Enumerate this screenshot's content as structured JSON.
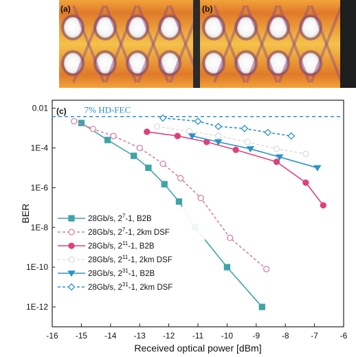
{
  "panels": [
    {
      "tag": "(a)"
    },
    {
      "tag": "(b)"
    }
  ],
  "chart_data": {
    "type": "line",
    "panel_tag": "(c)",
    "xlabel": "Received optical power [dBm]",
    "ylabel": "BER",
    "xlim": [
      -16,
      -6
    ],
    "ylim_log10": [
      -13,
      -1.6
    ],
    "log_y": true,
    "x_ticks": [
      -16,
      -15,
      -14,
      -13,
      -12,
      -11,
      -10,
      -9,
      -8,
      -7,
      -6
    ],
    "y_ticks": [
      {
        "label": "0.01",
        "value": 0.01
      },
      {
        "label": "1E-4",
        "value": 0.0001
      },
      {
        "label": "1E-6",
        "value": 1e-06
      },
      {
        "label": "1E-8",
        "value": 1e-08
      },
      {
        "label": "1E-10",
        "value": 1e-10
      },
      {
        "label": "1E-12",
        "value": 1e-12
      }
    ],
    "threshold": {
      "label": "7% HD-FEC",
      "value": 0.0038,
      "color": "#2a8fd0"
    },
    "series": [
      {
        "name": "28Gb/s, 2^7-1, B2B",
        "color": "#3fa3a8",
        "marker": "square",
        "filled": true,
        "dash": false,
        "x": [
          -15.0,
          -14.1,
          -13.2,
          -12.7,
          -12.15,
          -11.65,
          -11.1,
          -10.0,
          -8.8
        ],
        "y": [
          0.0018,
          0.00025,
          4e-05,
          1e-05,
          1.5e-06,
          2e-07,
          1e-08,
          1e-10,
          1e-12
        ]
      },
      {
        "name": "28Gb/s, 2^7-1, 2km DSF",
        "color": "#d97fa0",
        "marker": "circle",
        "filled": false,
        "dash": true,
        "x": [
          -15.25,
          -14.6,
          -13.9,
          -13.0,
          -12.2,
          -11.6,
          -10.9,
          -9.9,
          -8.65
        ],
        "y": [
          0.0022,
          0.0009,
          0.0004,
          0.0001,
          1.6e-05,
          3e-06,
          3e-07,
          3e-09,
          8e-11
        ]
      },
      {
        "name": "28Gb/s, 2^11-1, B2B",
        "color": "#e0407a",
        "marker": "circle",
        "filled": true,
        "dash": false,
        "x": [
          -12.75,
          -11.7,
          -10.7,
          -9.7,
          -8.3,
          -7.3,
          -6.7
        ],
        "y": [
          0.00065,
          0.0004,
          0.0002,
          8e-05,
          2e-05,
          1.8e-06,
          1.3e-07
        ]
      },
      {
        "name": "28Gb/s, 2^11-1, 2km DSF",
        "color": "#dddddd",
        "marker": "circle",
        "filled": false,
        "dash": true,
        "x": [
          -12.4,
          -11.3,
          -10.3,
          -9.3,
          -8.3,
          -7.3
        ],
        "y": [
          0.0012,
          0.0007,
          0.0004,
          0.0002,
          9e-05,
          5e-05
        ]
      },
      {
        "name": "28Gb/s, 2^31-1, B2B",
        "color": "#2b94c4",
        "marker": "triangle-down",
        "filled": true,
        "dash": false,
        "x": [
          -11.2,
          -10.3,
          -9.2,
          -8.2,
          -6.9
        ],
        "y": [
          0.0004,
          0.0002,
          9e-05,
          3.5e-05,
          1e-05
        ]
      },
      {
        "name": "28Gb/s, 2^31-1, 2km DSF",
        "color": "#2b94c4",
        "marker": "diamond",
        "filled": false,
        "dash": true,
        "x": [
          -12.2,
          -11.0,
          -10.3,
          -9.4,
          -8.6,
          -7.8
        ],
        "y": [
          0.0032,
          0.0022,
          0.0012,
          0.00095,
          0.0006,
          0.0004
        ]
      }
    ],
    "legend": {
      "placement": "bottom-left",
      "entries": [
        {
          "base": "28Gb/s, 2",
          "exp": "7",
          "rest": "-1, B2B"
        },
        {
          "base": "28Gb/s, 2",
          "exp": "7",
          "rest": "-1, 2km DSF"
        },
        {
          "base": "28Gb/s, 2",
          "exp": "11",
          "rest": "-1, B2B"
        },
        {
          "base": "28Gb/s, 2",
          "exp": "11",
          "rest": "-1, 2km DSF"
        },
        {
          "base": "28Gb/s, 2",
          "exp": "31",
          "rest": "-1, B2B"
        },
        {
          "base": "28Gb/s, 2",
          "exp": "31",
          "rest": "-1, 2km DSF"
        }
      ]
    }
  }
}
